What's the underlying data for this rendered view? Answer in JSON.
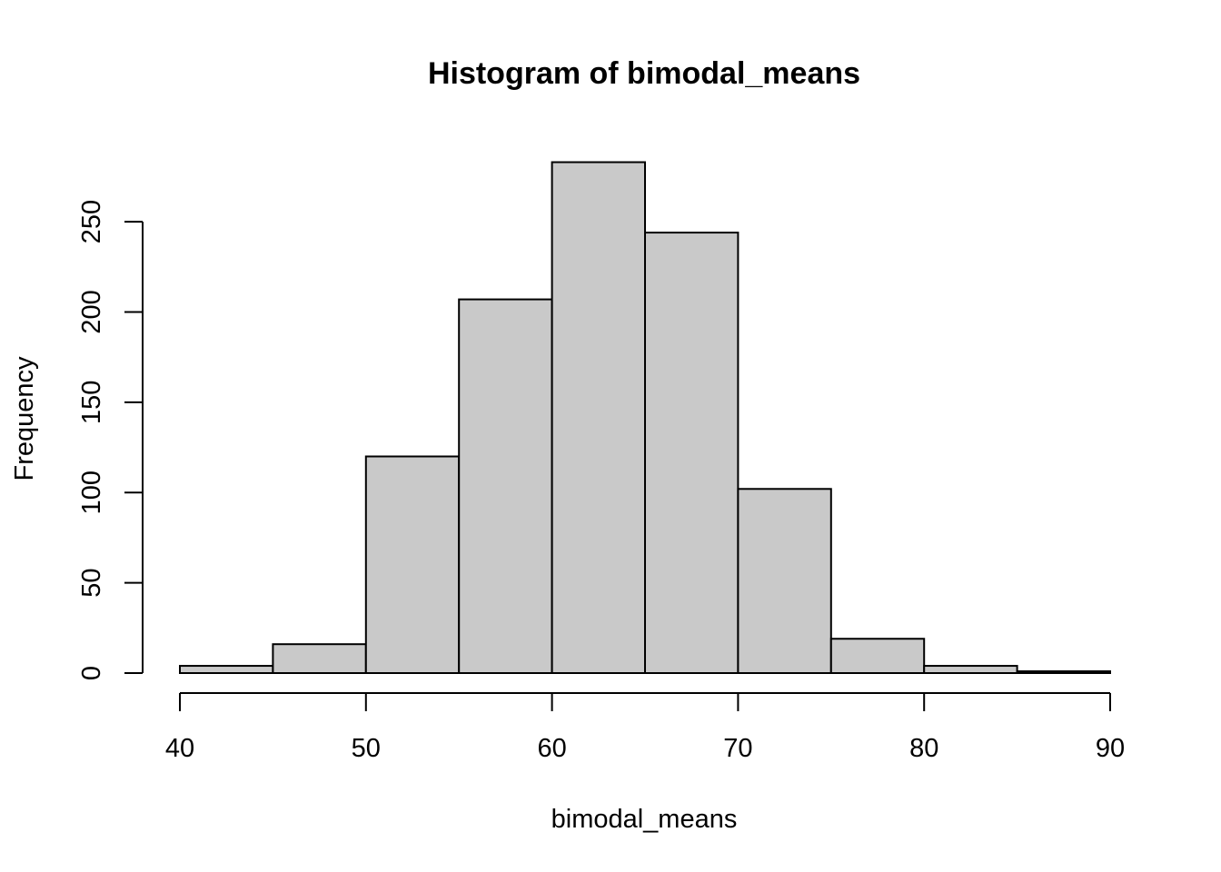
{
  "chart_data": {
    "type": "bar",
    "title": "Histogram of bimodal_means",
    "xlabel": "bimodal_means",
    "ylabel": "Frequency",
    "bins": [
      {
        "start": 40,
        "end": 45,
        "value": 4
      },
      {
        "start": 45,
        "end": 50,
        "value": 16
      },
      {
        "start": 50,
        "end": 55,
        "value": 120
      },
      {
        "start": 55,
        "end": 60,
        "value": 207
      },
      {
        "start": 60,
        "end": 65,
        "value": 283
      },
      {
        "start": 65,
        "end": 70,
        "value": 244
      },
      {
        "start": 70,
        "end": 75,
        "value": 102
      },
      {
        "start": 75,
        "end": 80,
        "value": 19
      },
      {
        "start": 80,
        "end": 85,
        "value": 4
      },
      {
        "start": 85,
        "end": 90,
        "value": 1
      }
    ],
    "xlim": [
      40,
      90
    ],
    "ylim": [
      0,
      283
    ],
    "x_ticks": [
      40,
      50,
      60,
      70,
      80,
      90
    ],
    "y_ticks": [
      0,
      50,
      100,
      150,
      200,
      250
    ],
    "x_tick_labels": [
      "40",
      "50",
      "60",
      "70",
      "80",
      "90"
    ],
    "y_tick_labels": [
      "0",
      "50",
      "100",
      "150",
      "200",
      "250"
    ],
    "grid": false,
    "bar_color": "#c9c9c9"
  }
}
